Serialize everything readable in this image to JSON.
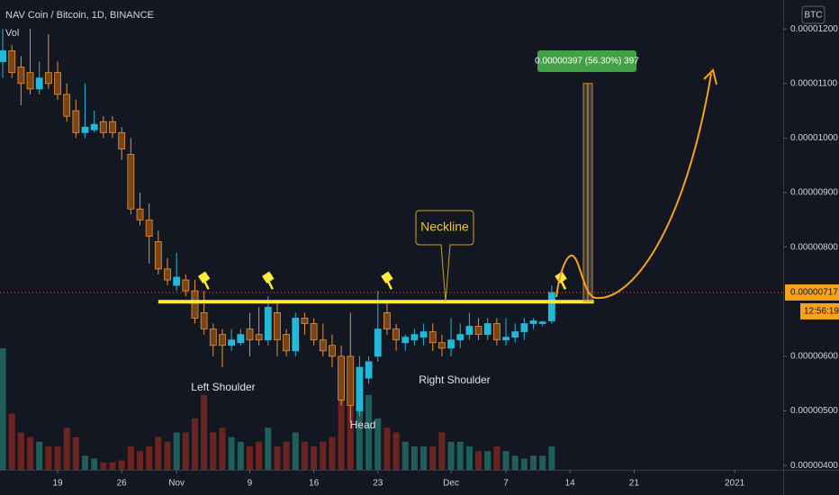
{
  "chart_data": {
    "type": "candlestick",
    "title": "NAV Coin / Bitcoin, 1D, BINANCE",
    "volume_label": "Vol",
    "currency_label": "BTC",
    "x": [
      0,
      1,
      2,
      3,
      4,
      5,
      6,
      7,
      8,
      9,
      10,
      11,
      12,
      13,
      14,
      15,
      16,
      17,
      18,
      19,
      20,
      21,
      22,
      23,
      24,
      25,
      26,
      27,
      28,
      29,
      30,
      31,
      32,
      33,
      34,
      35,
      36,
      37,
      38,
      39,
      40,
      41,
      42,
      43,
      44,
      45,
      46,
      47,
      48,
      49,
      50,
      51,
      52,
      53,
      54,
      55,
      56,
      57,
      58,
      59,
      60
    ],
    "open": [
      1.14e-05,
      1.16e-05,
      1.13e-05,
      1.12e-05,
      1.09e-05,
      1.12e-05,
      1.12e-05,
      1.08e-05,
      1.05e-05,
      1.01e-05,
      1.015e-05,
      1.03e-05,
      1.03e-05,
      1.01e-05,
      9.7e-06,
      8.7e-06,
      8.5e-06,
      8.1e-06,
      7.6e-06,
      7.3e-06,
      7.4e-06,
      7.2e-06,
      6.8e-06,
      6.5e-06,
      6.4e-06,
      6.2e-06,
      6.25e-06,
      6.5e-06,
      6.4e-06,
      6.3e-06,
      6.8e-06,
      6.4e-06,
      6.1e-06,
      6.7e-06,
      6.6e-06,
      6.3e-06,
      6.2e-06,
      6e-06,
      6e-06,
      5e-06,
      5.6e-06,
      6e-06,
      6.8e-06,
      6.5e-06,
      6.25e-06,
      6.3e-06,
      6.35e-06,
      6.45e-06,
      6.25e-06,
      6.15e-06,
      6.3e-06,
      6.4e-06,
      6.55e-06,
      6.4e-06,
      6.6e-06,
      6.3e-06,
      6.35e-06,
      6.45e-06,
      6.6e-06,
      6.6e-06,
      6.65e-06
    ],
    "high": [
      1.2e-05,
      1.17e-05,
      1.15e-05,
      1.2e-05,
      1.14e-05,
      1.19e-05,
      1.14e-05,
      1.1e-05,
      1.07e-05,
      1.1e-05,
      1.05e-05,
      1.04e-05,
      1.04e-05,
      1.02e-05,
      1e-05,
      9e-06,
      8.8e-06,
      8.3e-06,
      7.8e-06,
      7.9e-06,
      7.5e-06,
      7.4e-06,
      7.2e-06,
      6.6e-06,
      6.5e-06,
      6.5e-06,
      6.5e-06,
      6.8e-06,
      6.9e-06,
      7.1e-06,
      7e-06,
      6.5e-06,
      6.8e-06,
      6.8e-06,
      6.7e-06,
      6.6e-06,
      6.4e-06,
      6.2e-06,
      6.8e-06,
      6e-06,
      6e-06,
      7.2e-06,
      7e-06,
      6.6e-06,
      6.4e-06,
      6.5e-06,
      6.6e-06,
      6.6e-06,
      6.4e-06,
      6.7e-06,
      6.6e-06,
      6.8e-06,
      6.7e-06,
      6.7e-06,
      6.7e-06,
      6.7e-06,
      6.6e-06,
      6.7e-06,
      6.7e-06,
      6.65e-06,
      7.3e-06
    ],
    "low": [
      1.11e-05,
      1.11e-05,
      1.06e-05,
      1.08e-05,
      1.08e-05,
      1.09e-05,
      1.07e-05,
      1.03e-05,
      1e-05,
      1e-05,
      1.01e-05,
      1e-05,
      1e-05,
      9.6e-06,
      8.6e-06,
      8.4e-06,
      7.7e-06,
      7.5e-06,
      7.3e-06,
      7.2e-06,
      7.1e-06,
      6.6e-06,
      6.4e-06,
      6e-06,
      5.8e-06,
      6.1e-06,
      6.2e-06,
      6e-06,
      6.2e-06,
      6.2e-06,
      6e-06,
      6e-06,
      6e-06,
      6.4e-06,
      6.2e-06,
      6e-06,
      5.8e-06,
      5.1e-06,
      4.8e-06,
      4.9e-06,
      5.5e-06,
      5.9e-06,
      6.4e-06,
      6.1e-06,
      6.1e-06,
      6.2e-06,
      6.2e-06,
      6.1e-06,
      6e-06,
      6e-06,
      6.15e-06,
      6.3e-06,
      6.3e-06,
      6.3e-06,
      6.2e-06,
      6.2e-06,
      6.25e-06,
      6.3e-06,
      6.5e-06,
      6.55e-06,
      6.6e-06
    ],
    "close": [
      1.16e-05,
      1.12e-05,
      1.1e-05,
      1.09e-05,
      1.11e-05,
      1.1e-05,
      1.08e-05,
      1.04e-05,
      1.01e-05,
      1.02e-05,
      1.025e-05,
      1.01e-05,
      1.01e-05,
      9.8e-06,
      8.7e-06,
      8.5e-06,
      8.2e-06,
      7.6e-06,
      7.4e-06,
      7.45e-06,
      7.2e-06,
      6.7e-06,
      6.5e-06,
      6.2e-06,
      6.2e-06,
      6.3e-06,
      6.4e-06,
      6.3e-06,
      6.3e-06,
      6.9e-06,
      6.3e-06,
      6.1e-06,
      6.7e-06,
      6.6e-06,
      6.3e-06,
      6.1e-06,
      6e-06,
      5.2e-06,
      5.1e-06,
      5.8e-06,
      5.9e-06,
      6.5e-06,
      6.5e-06,
      6.3e-06,
      6.35e-06,
      6.4e-06,
      6.45e-06,
      6.25e-06,
      6.15e-06,
      6.3e-06,
      6.4e-06,
      6.55e-06,
      6.4e-06,
      6.6e-06,
      6.3e-06,
      6.35e-06,
      6.45e-06,
      6.6e-06,
      6.65e-06,
      6.63e-06,
      7.17e-06
    ],
    "volume": [
      130,
      60,
      40,
      35,
      30,
      25,
      25,
      45,
      35,
      15,
      12,
      8,
      8,
      10,
      25,
      20,
      25,
      35,
      30,
      40,
      40,
      55,
      80,
      40,
      45,
      35,
      30,
      25,
      30,
      45,
      25,
      30,
      40,
      30,
      25,
      30,
      35,
      80,
      120,
      90,
      80,
      55,
      45,
      40,
      30,
      25,
      25,
      25,
      40,
      30,
      30,
      25,
      20,
      20,
      25,
      20,
      15,
      12,
      15,
      15,
      25
    ],
    "up_color": "#22b8d8",
    "down_color": "#7a4414",
    "down_border": "#e8923a",
    "vol_up_color": "#1f5e5a",
    "vol_down_color": "#6b2420",
    "xlim": [
      -0.3,
      85.3
    ],
    "xticks": [
      {
        "value": 6,
        "label": "19"
      },
      {
        "value": 13,
        "label": "26"
      },
      {
        "value": 19,
        "label": "Nov"
      },
      {
        "value": 27,
        "label": "9"
      },
      {
        "value": 34,
        "label": "16"
      },
      {
        "value": 41,
        "label": "23"
      },
      {
        "value": 49,
        "label": "Dec"
      },
      {
        "value": 55,
        "label": "7"
      },
      {
        "value": 62,
        "label": "14"
      },
      {
        "value": 69,
        "label": "21"
      },
      {
        "value": 80,
        "label": "2021"
      }
    ],
    "ylim": [
      3.92e-06,
      1.253e-05
    ],
    "yticks": [
      {
        "value": 1.2e-05,
        "label": "0.00001200"
      },
      {
        "value": 1.1e-05,
        "label": "0.00001100"
      },
      {
        "value": 1e-05,
        "label": "0.00001000"
      },
      {
        "value": 9e-06,
        "label": "0.00000900"
      },
      {
        "value": 8e-06,
        "label": "0.00000800"
      },
      {
        "value": 6e-06,
        "label": "0.00000600"
      },
      {
        "value": 5e-06,
        "label": "0.00000500"
      },
      {
        "value": 4e-06,
        "label": "0.00000400"
      }
    ],
    "last_price": {
      "value": 7.17e-06,
      "label": "0.00000717"
    },
    "countdown": "12:56:19",
    "neckline": 7e-06,
    "measure_top": 1.1e-05,
    "measure_label": "0.00000397 (56.30%) 397",
    "annotations": [
      "Left Shoulder",
      "Head",
      "Right Shoulder",
      "Neckline"
    ]
  }
}
